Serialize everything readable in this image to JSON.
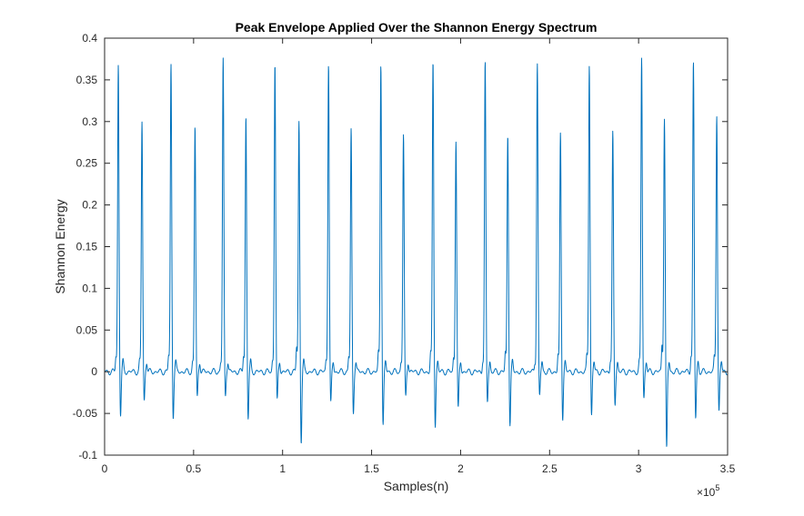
{
  "chart_data": {
    "type": "line",
    "title": "Peak Envelope Applied Over the Shannon Energy Spectrum",
    "xlabel": "Samples(n)",
    "ylabel": "Shannon Energy",
    "xlim": [
      0,
      350000
    ],
    "ylim": [
      -0.1,
      0.4
    ],
    "x_exponent_label": "×10",
    "x_exponent_power": "5",
    "x_ticks": [
      0,
      50000,
      100000,
      150000,
      200000,
      250000,
      300000,
      350000
    ],
    "x_tick_labels": [
      "0",
      "0.5",
      "1",
      "1.5",
      "2",
      "2.5",
      "3",
      "3.5"
    ],
    "y_ticks": [
      -0.1,
      -0.05,
      0,
      0.05,
      0.1,
      0.15,
      0.2,
      0.25,
      0.3,
      0.35,
      0.4
    ],
    "y_tick_labels": [
      "-0.1",
      "-0.05",
      "0",
      "0.05",
      "0.1",
      "0.15",
      "0.2",
      "0.25",
      "0.3",
      "0.35",
      "0.4"
    ],
    "grid": false,
    "series_color": "#0072BD",
    "baseline_amplitude": 0.004,
    "series": [
      {
        "peaks": [
          {
            "x": 7700,
            "y": 0.368,
            "trough": -0.053
          },
          {
            "x": 21000,
            "y": 0.3,
            "trough": -0.036
          },
          {
            "x": 37300,
            "y": 0.368,
            "trough": -0.055
          },
          {
            "x": 50800,
            "y": 0.294,
            "trough": -0.032
          },
          {
            "x": 66600,
            "y": 0.374,
            "trough": -0.03
          },
          {
            "x": 79400,
            "y": 0.305,
            "trough": -0.057
          },
          {
            "x": 95700,
            "y": 0.371,
            "trough": -0.037
          },
          {
            "x": 109200,
            "y": 0.3,
            "trough": -0.085
          },
          {
            "x": 125800,
            "y": 0.371,
            "trough": -0.04
          },
          {
            "x": 138500,
            "y": 0.29,
            "trough": -0.05
          },
          {
            "x": 155200,
            "y": 0.371,
            "trough": -0.065
          },
          {
            "x": 167900,
            "y": 0.284,
            "trough": -0.032
          },
          {
            "x": 184500,
            "y": 0.371,
            "trough": -0.065
          },
          {
            "x": 197400,
            "y": 0.278,
            "trough": -0.047
          },
          {
            "x": 213800,
            "y": 0.369,
            "trough": -0.037
          },
          {
            "x": 226500,
            "y": 0.285,
            "trough": -0.064
          },
          {
            "x": 243100,
            "y": 0.37,
            "trough": -0.031
          },
          {
            "x": 256100,
            "y": 0.285,
            "trough": -0.056
          },
          {
            "x": 272300,
            "y": 0.37,
            "trough": -0.054
          },
          {
            "x": 285500,
            "y": 0.285,
            "trough": -0.04
          },
          {
            "x": 301700,
            "y": 0.377,
            "trough": -0.032
          },
          {
            "x": 314500,
            "y": 0.305,
            "trough": -0.095
          },
          {
            "x": 330800,
            "y": 0.37,
            "trough": -0.057
          },
          {
            "x": 343900,
            "y": 0.31,
            "trough": -0.049
          }
        ]
      }
    ]
  }
}
